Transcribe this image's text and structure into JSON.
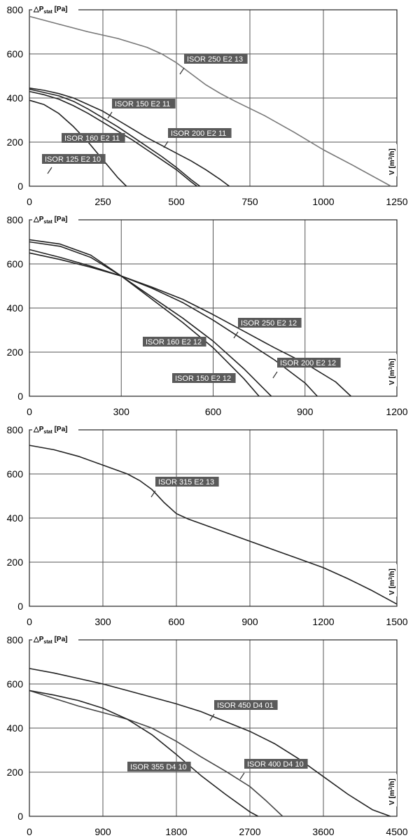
{
  "chart_data": [
    {
      "type": "line",
      "ylabel": "△P",
      "ylabel_sub": "stat",
      "ylabel_unit": "[Pa]",
      "xlabel": "V",
      "xlabel_unit": "[m",
      "xlabel_sup": "3",
      "xlabel_end": "/h]",
      "xlim": [
        0,
        1250
      ],
      "ylim": [
        0,
        800
      ],
      "xticks": [
        0,
        250,
        500,
        750,
        1000,
        1250
      ],
      "yticks": [
        0,
        200,
        400,
        600,
        800
      ],
      "grid": true,
      "series": [
        {
          "name": "ISOR 250 E2 13",
          "color": "#777777",
          "x": [
            0,
            100,
            200,
            300,
            400,
            450,
            500,
            550,
            600,
            650,
            700,
            800,
            900,
            1000,
            1100,
            1230
          ],
          "y": [
            770,
            735,
            700,
            670,
            630,
            600,
            560,
            510,
            460,
            420,
            385,
            320,
            245,
            165,
            95,
            0
          ]
        },
        {
          "name": "ISOR 200 E2 11",
          "color": "#222222",
          "x": [
            0,
            50,
            100,
            150,
            200,
            250,
            300,
            350,
            400,
            450,
            500,
            550,
            600,
            650,
            680
          ],
          "y": [
            445,
            435,
            420,
            400,
            370,
            340,
            300,
            260,
            220,
            185,
            150,
            115,
            75,
            30,
            0
          ]
        },
        {
          "name": "ISOR 150 E2 11",
          "color": "#222222",
          "x": [
            0,
            50,
            100,
            150,
            200,
            250,
            300,
            350,
            400,
            450,
            500,
            550,
            580
          ],
          "y": [
            440,
            425,
            410,
            385,
            350,
            310,
            270,
            225,
            180,
            135,
            85,
            30,
            0
          ]
        },
        {
          "name": "ISOR 160 E2 11",
          "color": "#222222",
          "x": [
            0,
            50,
            100,
            150,
            200,
            250,
            300,
            350,
            400,
            450,
            500,
            550,
            570
          ],
          "y": [
            430,
            415,
            395,
            365,
            330,
            290,
            250,
            210,
            165,
            120,
            75,
            20,
            0
          ]
        },
        {
          "name": "ISOR 125 E2 10",
          "color": "#222222",
          "x": [
            0,
            50,
            100,
            150,
            200,
            250,
            300,
            330
          ],
          "y": [
            390,
            370,
            330,
            270,
            200,
            120,
            40,
            0
          ]
        }
      ],
      "annotations": [
        "ISOR 250 E2 13",
        "ISOR 150 E2 11",
        "ISOR 200 E2 11",
        "ISOR 160 E2 11",
        "ISOR 125 E2 10"
      ]
    },
    {
      "type": "line",
      "ylabel": "△P",
      "ylabel_sub": "stat",
      "ylabel_unit": "[Pa]",
      "xlabel": "V",
      "xlabel_unit": "[m",
      "xlabel_sup": "3",
      "xlabel_end": "/h]",
      "xlim": [
        0,
        1200
      ],
      "ylim": [
        0,
        800
      ],
      "xticks": [
        0,
        300,
        600,
        900,
        1200
      ],
      "yticks": [
        0,
        200,
        400,
        600,
        800
      ],
      "grid": true,
      "series": [
        {
          "name": "ISOR 250 E2 12",
          "color": "#222222",
          "x": [
            0,
            100,
            200,
            300,
            400,
            500,
            600,
            700,
            800,
            900,
            1000,
            1050
          ],
          "y": [
            650,
            620,
            585,
            545,
            495,
            440,
            370,
            295,
            220,
            150,
            65,
            0
          ]
        },
        {
          "name": "ISOR 200 E2 12",
          "color": "#222222",
          "x": [
            0,
            100,
            200,
            300,
            400,
            500,
            600,
            700,
            800,
            900,
            940
          ],
          "y": [
            665,
            630,
            590,
            545,
            490,
            425,
            345,
            255,
            165,
            60,
            0
          ]
        },
        {
          "name": "ISOR 160 E2 12",
          "color": "#222222",
          "x": [
            0,
            100,
            200,
            300,
            400,
            500,
            600,
            700,
            790
          ],
          "y": [
            700,
            680,
            630,
            545,
            450,
            355,
            250,
            125,
            0
          ]
        },
        {
          "name": "ISOR 150 E2 12",
          "color": "#222222",
          "x": [
            0,
            100,
            200,
            300,
            400,
            500,
            600,
            700,
            750
          ],
          "y": [
            710,
            690,
            640,
            545,
            440,
            335,
            220,
            80,
            0
          ]
        }
      ],
      "annotations": [
        "ISOR 250 E2 12",
        "ISOR 160 E2 12",
        "ISOR 200 E2 12",
        "ISOR 150 E2 12"
      ]
    },
    {
      "type": "line",
      "ylabel": "△P",
      "ylabel_sub": "stat",
      "ylabel_unit": "[Pa]",
      "xlabel": "V",
      "xlabel_unit": "[m",
      "xlabel_sup": "3",
      "xlabel_end": "/h]",
      "xlim": [
        0,
        1500
      ],
      "ylim": [
        0,
        800
      ],
      "xticks": [
        0,
        300,
        600,
        900,
        1200,
        1500
      ],
      "yticks": [
        0,
        200,
        400,
        600,
        800
      ],
      "grid": true,
      "series": [
        {
          "name": "ISOR 315 E2 13",
          "color": "#222222",
          "x": [
            0,
            100,
            200,
            300,
            400,
            450,
            500,
            550,
            600,
            650,
            700,
            800,
            900,
            1000,
            1100,
            1200,
            1300,
            1400,
            1500
          ],
          "y": [
            730,
            710,
            680,
            640,
            600,
            570,
            530,
            470,
            420,
            395,
            375,
            335,
            295,
            255,
            215,
            175,
            125,
            70,
            10
          ]
        }
      ],
      "annotations": [
        "ISOR 315 E2 13"
      ]
    },
    {
      "type": "line",
      "ylabel": "△P",
      "ylabel_sub": "stat",
      "ylabel_unit": "[Pa]",
      "xlabel": "V",
      "xlabel_unit": "[m",
      "xlabel_sup": "3",
      "xlabel_end": "/h]",
      "xlim": [
        0,
        4500
      ],
      "ylim": [
        0,
        800
      ],
      "xticks": [
        0,
        900,
        1800,
        2700,
        3600,
        4500
      ],
      "yticks": [
        0,
        200,
        400,
        600,
        800
      ],
      "grid": true,
      "series": [
        {
          "name": "ISOR 450 D4 01",
          "color": "#222222",
          "x": [
            0,
            300,
            600,
            900,
            1200,
            1500,
            1800,
            2100,
            2400,
            2700,
            3000,
            3300,
            3600,
            3900,
            4200,
            4420
          ],
          "y": [
            670,
            650,
            625,
            600,
            570,
            540,
            510,
            475,
            430,
            385,
            330,
            260,
            180,
            100,
            30,
            0
          ]
        },
        {
          "name": "ISOR 400 D4 10",
          "color": "#444444",
          "x": [
            0,
            300,
            600,
            900,
            1200,
            1500,
            1800,
            2100,
            2400,
            2700,
            2900,
            3100
          ],
          "y": [
            570,
            535,
            500,
            470,
            440,
            400,
            340,
            270,
            205,
            135,
            70,
            0
          ]
        },
        {
          "name": "ISOR 355 D4 10",
          "color": "#222222",
          "x": [
            0,
            300,
            600,
            900,
            1200,
            1500,
            1800,
            2100,
            2400,
            2700,
            2800
          ],
          "y": [
            570,
            550,
            525,
            490,
            440,
            370,
            280,
            185,
            100,
            20,
            0
          ]
        }
      ],
      "annotations": [
        "ISOR 450 D4 01",
        "ISOR 400 D4 10",
        "ISOR 355 D4 10"
      ]
    }
  ]
}
